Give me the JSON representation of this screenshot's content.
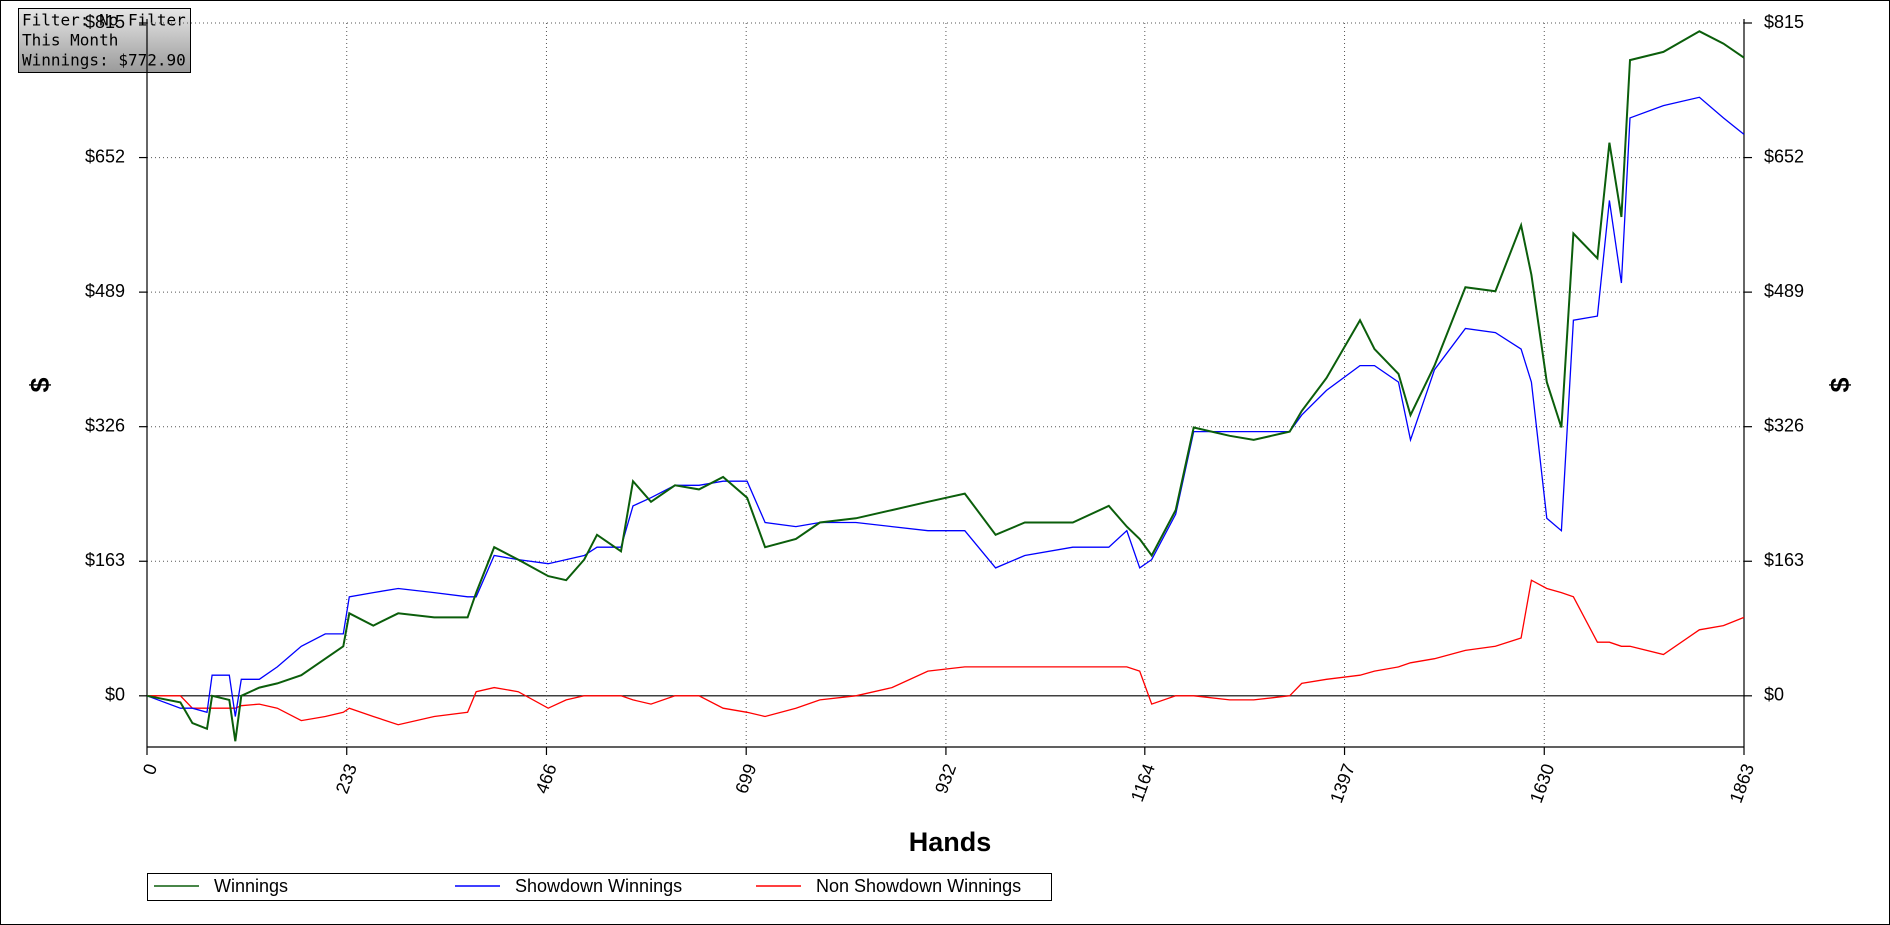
{
  "chart_data": {
    "type": "line",
    "info_lines": [
      "Filter: No Filter",
      "This Month",
      "Winnings: $772.90"
    ],
    "x_label": "Hands",
    "y_label": "$",
    "x": [
      0,
      39,
      53,
      70,
      76,
      96,
      103,
      110,
      131,
      152,
      180,
      208,
      229,
      236,
      264,
      293,
      335,
      374,
      384,
      405,
      433,
      468,
      489,
      510,
      525,
      553,
      567,
      588,
      616,
      644,
      672,
      700,
      721,
      757,
      785,
      827,
      869,
      911,
      954,
      990,
      1024,
      1080,
      1122,
      1143,
      1158,
      1172,
      1200,
      1221,
      1263,
      1291,
      1333,
      1347,
      1376,
      1415,
      1432,
      1460,
      1474,
      1502,
      1538,
      1573,
      1603,
      1615,
      1633,
      1650,
      1664,
      1692,
      1706,
      1720,
      1730,
      1769,
      1811,
      1839,
      1863
    ],
    "series": [
      {
        "name": "Winnings",
        "color": "#0b5e0b",
        "values": [
          0,
          -8,
          -33,
          -40,
          0,
          -5,
          -55,
          0,
          10,
          15,
          25,
          45,
          60,
          100,
          85,
          100,
          95,
          95,
          125,
          180,
          165,
          145,
          140,
          165,
          195,
          175,
          260,
          235,
          255,
          250,
          265,
          240,
          180,
          190,
          210,
          215,
          225,
          235,
          245,
          195,
          210,
          210,
          230,
          205,
          190,
          170,
          225,
          325,
          315,
          310,
          320,
          345,
          385,
          455,
          420,
          390,
          340,
          400,
          495,
          490,
          570,
          510,
          380,
          325,
          560,
          530,
          670,
          580,
          770,
          780,
          805,
          790,
          773
        ]
      },
      {
        "name": "Showdown Winnings",
        "color": "#0000ff",
        "values": [
          0,
          -15,
          -15,
          -20,
          25,
          25,
          -25,
          20,
          20,
          35,
          60,
          75,
          75,
          120,
          125,
          130,
          125,
          120,
          120,
          170,
          165,
          160,
          165,
          170,
          180,
          180,
          230,
          240,
          255,
          255,
          260,
          260,
          210,
          205,
          210,
          210,
          205,
          200,
          200,
          155,
          170,
          180,
          180,
          200,
          155,
          165,
          220,
          320,
          320,
          320,
          320,
          340,
          370,
          400,
          400,
          380,
          310,
          395,
          445,
          440,
          420,
          380,
          215,
          200,
          455,
          460,
          600,
          500,
          700,
          715,
          725,
          700,
          680
        ]
      },
      {
        "name": "Non Showdown Winnings",
        "color": "#ff0000",
        "values": [
          0,
          0,
          -15,
          -15,
          -15,
          -15,
          -15,
          -12,
          -10,
          -15,
          -30,
          -25,
          -20,
          -15,
          -25,
          -35,
          -25,
          -20,
          5,
          10,
          5,
          -15,
          -5,
          0,
          0,
          0,
          -5,
          -10,
          0,
          0,
          -15,
          -20,
          -25,
          -15,
          -5,
          0,
          10,
          30,
          35,
          35,
          35,
          35,
          35,
          35,
          30,
          -10,
          0,
          0,
          -5,
          -5,
          0,
          15,
          20,
          25,
          30,
          35,
          40,
          45,
          55,
          60,
          70,
          140,
          130,
          125,
          120,
          65,
          65,
          60,
          60,
          50,
          80,
          85,
          95
        ]
      }
    ],
    "xlim": [
      0,
      1863
    ],
    "xticks": [
      0,
      233,
      466,
      699,
      932,
      1164,
      1397,
      1630,
      1863
    ],
    "ylim": [
      -62,
      815
    ],
    "yticks": [
      {
        "value": 0,
        "label": "$0"
      },
      {
        "value": 163,
        "label": "$163"
      },
      {
        "value": 326,
        "label": "$326"
      },
      {
        "value": 489,
        "label": "$489"
      },
      {
        "value": 652,
        "label": "$652"
      },
      {
        "value": 815,
        "label": "$815"
      }
    ],
    "grid": true
  }
}
